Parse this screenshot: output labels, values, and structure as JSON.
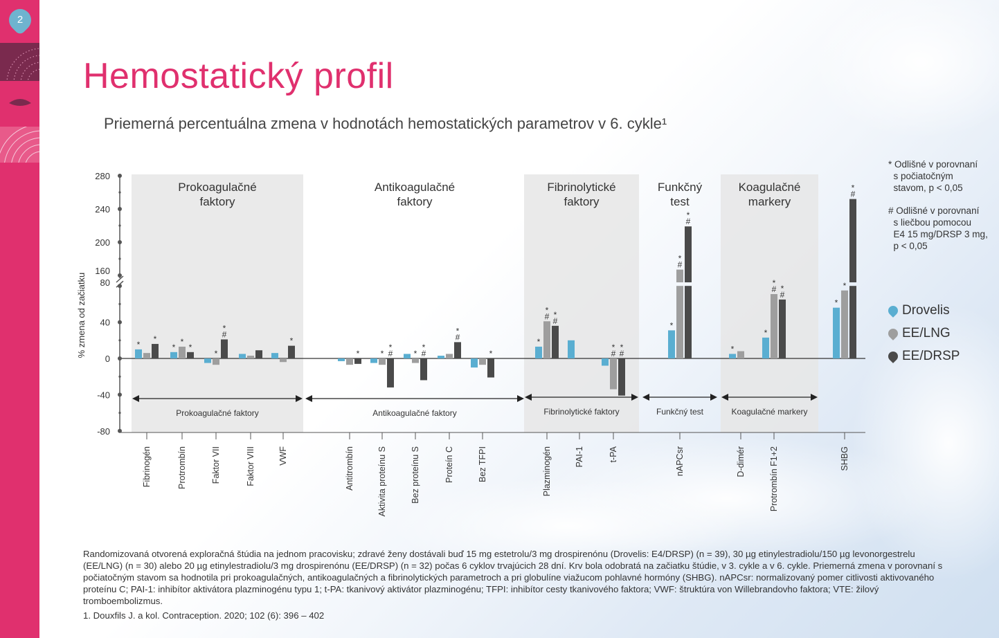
{
  "page": {
    "number": "2",
    "title": "Hemostatický profil",
    "subtitle": "Priemerná percentuálna zmena v hodnotách hemostatických parametrov v 6. cykle¹"
  },
  "notes": [
    "* Odlišné v porovnaní\n  s počiatočným\n  stavom, p < 0,05",
    "# Odlišné v porovnaní\n  s liečbou pomocou\n  E4 15 mg/DRSP 3 mg,\n  p < 0,05"
  ],
  "legend": [
    {
      "name": "Drovelis",
      "color": "#5aaed1"
    },
    {
      "name": "EE/LNG",
      "color": "#9e9e9e"
    },
    {
      "name": "EE/DRSP",
      "color": "#4a4a4a"
    }
  ],
  "footnote": "Randomizovaná otvorená exploračná štúdia na jednom pracovisku; zdravé ženy dostávali buď 15 mg estetrolu/3 mg drospirenónu (Drovelis: E4/DRSP) (n = 39), 30 µg etinylestradiolu/150 µg levonorgestrelu (EE/LNG) (n = 30) alebo 20 µg etinylestradiolu/3 mg drospirenónu (EE/DRSP) (n = 32) počas 6 cyklov trvajúcich 28 dní. Krv bola odobratá na začiatku štúdie, v 3. cykle a v 6. cykle. Priemerná zmena v porovnaní s počiatočným stavom sa hodnotila pri prokoagulačných, antikoagulačných a fibrinolytických parametroch a pri globulíne viažucom pohlavné hormóny (SHBG). nAPCsr: normalizovaný pomer citlivosti aktivovaného proteínu C; PAI-1: inhibítor aktivátora plazminogénu typu 1; t-PA: tkanivový aktivátor plazminogénu; TFPI: inhibítor cesty tkanivového faktora; VWF: štruktúra von Willebrandovho faktora; VTE: žilový tromboembolizmus.",
  "reference": "1. Douxfils J. a kol. Contraception. 2020; 102 (6): 396 – 402",
  "chart_data": {
    "type": "bar",
    "ylabel": "% zmena od začiatku",
    "y_ticks_lower": [
      -80,
      -40,
      0,
      40,
      80
    ],
    "y_ticks_upper": [
      160,
      200,
      240,
      280
    ],
    "axis_break": [
      80,
      160
    ],
    "series_names": [
      "Drovelis",
      "EE/LNG",
      "EE/DRSP"
    ],
    "groups": [
      {
        "title": [
          "Prokoagulačné",
          "faktory"
        ],
        "bottom_label": "Prokoagulačné faktory",
        "shaded": true
      },
      {
        "title": [
          "Antikoagulačné",
          "faktory"
        ],
        "bottom_label": "Antikoagulačné faktory",
        "shaded": false
      },
      {
        "title": [
          "Fibrinolytické",
          "faktory"
        ],
        "bottom_label": "Fibrinolytické faktory",
        "shaded": true
      },
      {
        "title": [
          "Funkčný",
          "test"
        ],
        "bottom_label": "Funkčný test",
        "shaded": false
      },
      {
        "title": [
          "Koagulačné",
          "markery"
        ],
        "bottom_label": "Koagulačné markery",
        "shaded": true
      }
    ],
    "categories": [
      {
        "name": "Fibrinogén",
        "group": 0,
        "values": [
          10,
          6,
          16
        ],
        "marks": [
          "*",
          "",
          "*"
        ]
      },
      {
        "name": "Protrombín",
        "group": 0,
        "values": [
          7,
          13,
          7
        ],
        "marks": [
          "*",
          "*",
          "*"
        ]
      },
      {
        "name": "Faktor VII",
        "group": 0,
        "values": [
          -5,
          -7,
          21
        ],
        "marks": [
          "",
          "*",
          "*#"
        ]
      },
      {
        "name": "Faktor VIII",
        "group": 0,
        "values": [
          5,
          3,
          9
        ],
        "marks": [
          "",
          "",
          ""
        ]
      },
      {
        "name": "VWF",
        "group": 0,
        "values": [
          6,
          -4,
          14
        ],
        "marks": [
          "",
          "",
          "*"
        ]
      },
      {
        "name": "Antitrombín",
        "group": 1,
        "values": [
          -3,
          -7,
          -6
        ],
        "marks": [
          "",
          "",
          "*"
        ]
      },
      {
        "name": "Aktivita proteínu S",
        "group": 1,
        "values": [
          -5,
          -7,
          -32
        ],
        "marks": [
          "",
          "*",
          "*#"
        ]
      },
      {
        "name": "Bez proteínu S",
        "group": 1,
        "values": [
          5,
          -5,
          -24
        ],
        "marks": [
          "",
          "*",
          "*#"
        ]
      },
      {
        "name": "Proteín C",
        "group": 1,
        "values": [
          3,
          5,
          18
        ],
        "marks": [
          "",
          "",
          "*#"
        ]
      },
      {
        "name": "Bez TFPI",
        "group": 1,
        "values": [
          -10,
          -7,
          -21
        ],
        "marks": [
          "",
          "",
          "*"
        ]
      },
      {
        "name": "Plazminogén",
        "group": 2,
        "values": [
          13,
          41,
          36
        ],
        "marks": [
          "*",
          "*#",
          "*#"
        ]
      },
      {
        "name": "PAI-1",
        "group": 2,
        "values": [
          20,
          0,
          0
        ],
        "marks": [
          "",
          "",
          ""
        ]
      },
      {
        "name": "t-PA",
        "group": 2,
        "values": [
          -8,
          -34,
          -41
        ],
        "marks": [
          "",
          "*#",
          "*#"
        ]
      },
      {
        "name": "nAPCsr",
        "group": 3,
        "values": [
          31,
          167,
          219
        ],
        "marks": [
          "*",
          "*#",
          "*#"
        ]
      },
      {
        "name": "D-dimér",
        "group": 4,
        "values": [
          5,
          8,
          0
        ],
        "marks": [
          "*",
          "",
          ""
        ]
      },
      {
        "name": "Protrombín F1+2",
        "group": 4,
        "values": [
          23,
          71,
          65
        ],
        "marks": [
          "*",
          "*#",
          "*#"
        ]
      },
      {
        "name": "SHBG",
        "group": 5,
        "values": [
          56,
          75,
          252
        ],
        "marks": [
          "*",
          "*",
          "*#"
        ]
      }
    ]
  }
}
